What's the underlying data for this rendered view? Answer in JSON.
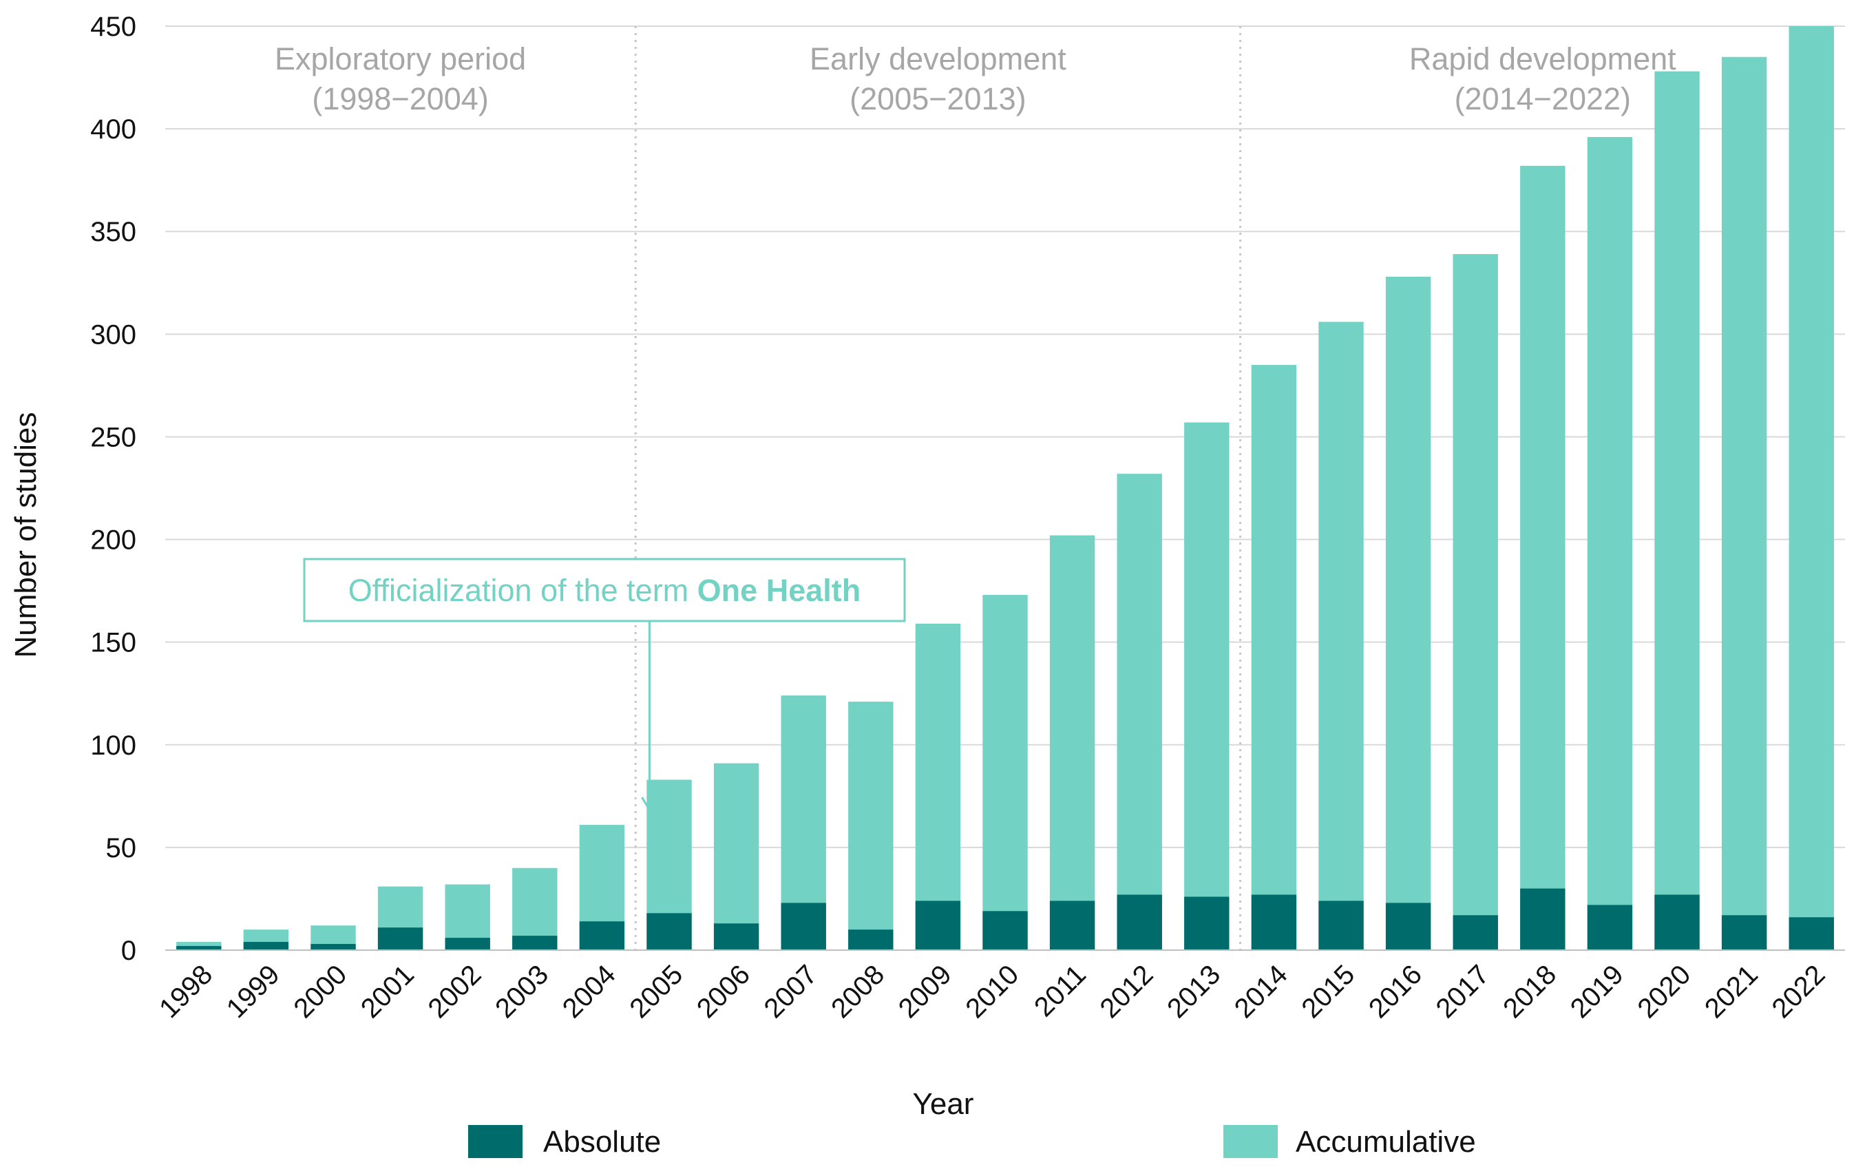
{
  "chart_data": {
    "type": "bar",
    "title": "",
    "xlabel": "Year",
    "ylabel": "Number of studies",
    "ylim": [
      0,
      450
    ],
    "yticks": [
      0,
      50,
      100,
      150,
      200,
      250,
      300,
      350,
      400,
      450
    ],
    "grid": true,
    "categories": [
      "1998",
      "1999",
      "2000",
      "2001",
      "2002",
      "2003",
      "2004",
      "2005",
      "2006",
      "2007",
      "2008",
      "2009",
      "2010",
      "2011",
      "2012",
      "2013",
      "2014",
      "2015",
      "2016",
      "2017",
      "2018",
      "2019",
      "2020",
      "2021",
      "2022"
    ],
    "series": [
      {
        "name": "Absolute",
        "color": "#006b6b",
        "values": [
          2,
          4,
          3,
          11,
          6,
          7,
          14,
          18,
          13,
          23,
          10,
          24,
          19,
          24,
          27,
          26,
          27,
          24,
          23,
          17,
          30,
          22,
          27,
          17,
          16
        ]
      },
      {
        "name": "Accumulative",
        "color": "#72d2c4",
        "values": [
          4,
          10,
          12,
          31,
          32,
          40,
          61,
          83,
          91,
          124,
          121,
          159,
          173,
          202,
          232,
          257,
          285,
          306,
          328,
          339,
          382,
          396,
          428,
          435,
          450
        ]
      }
    ],
    "periods": [
      {
        "name": "Exploratory period",
        "range": "(1998−2004)",
        "start": "1998",
        "end": "2004"
      },
      {
        "name": "Early development",
        "range": "(2005−2013)",
        "start": "2005",
        "end": "2013"
      },
      {
        "name": "Rapid development",
        "range": "(2014−2022)",
        "start": "2014",
        "end": "2022"
      }
    ],
    "annotation": {
      "text_prefix": "Officialization of the term ",
      "text_bold": "One Health",
      "points_to": "2004",
      "color": "#72d2c4"
    },
    "legend": {
      "placement": "bottom",
      "items": [
        "Absolute",
        "Accumulative"
      ]
    }
  }
}
